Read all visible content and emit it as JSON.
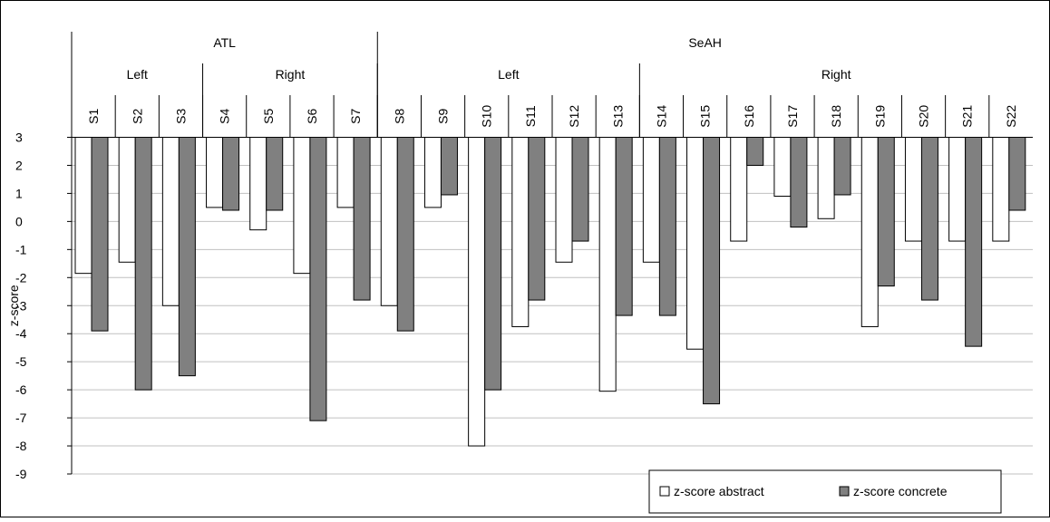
{
  "colors": {
    "background": "#ffffff",
    "abstract_fill": "#ffffff",
    "concrete_fill": "#808080",
    "bar_stroke": "#000000",
    "gridline": "#c0c0c0",
    "border": "#000000"
  },
  "chart_data": {
    "type": "bar",
    "title": "",
    "xlabel": "",
    "ylabel": "z-score",
    "ylim": [
      -9,
      3
    ],
    "yticks": [
      3,
      2,
      1,
      0,
      -1,
      -2,
      -3,
      -4,
      -5,
      -6,
      -7,
      -8,
      -9
    ],
    "grid": true,
    "legend_position": "bottom-right",
    "categories": [
      "S1",
      "S2",
      "S3",
      "S4",
      "S5",
      "S6",
      "S7",
      "S8",
      "S9",
      "S10",
      "S11",
      "S12",
      "S13",
      "S14",
      "S15",
      "S16",
      "S17",
      "S18",
      "S19",
      "S20",
      "S21",
      "S22"
    ],
    "groups": [
      {
        "label": "ATL",
        "start": 0,
        "end": 6
      },
      {
        "label": "SeAH",
        "start": 7,
        "end": 21
      }
    ],
    "subgroups": [
      {
        "label": "Left",
        "start": 0,
        "end": 2
      },
      {
        "label": "Right",
        "start": 3,
        "end": 6
      },
      {
        "label": "Left",
        "start": 7,
        "end": 12
      },
      {
        "label": "Right",
        "start": 13,
        "end": 21
      }
    ],
    "series": [
      {
        "name": "z-score abstract",
        "values": [
          -1.85,
          -1.45,
          -3.0,
          0.5,
          -0.3,
          -1.85,
          0.5,
          -3.0,
          0.5,
          -8.0,
          -3.75,
          -1.45,
          -6.05,
          -1.45,
          -4.55,
          -0.7,
          0.9,
          0.1,
          -3.75,
          -0.7,
          -0.7,
          -0.7
        ]
      },
      {
        "name": "z-score concrete",
        "values": [
          -3.9,
          -6.0,
          -5.5,
          0.4,
          0.4,
          -7.1,
          -2.8,
          -3.9,
          0.95,
          -6.0,
          -2.8,
          -0.7,
          -3.35,
          -3.35,
          -6.5,
          2.0,
          -0.2,
          0.95,
          -2.3,
          -2.8,
          -4.45,
          0.4
        ]
      }
    ]
  }
}
